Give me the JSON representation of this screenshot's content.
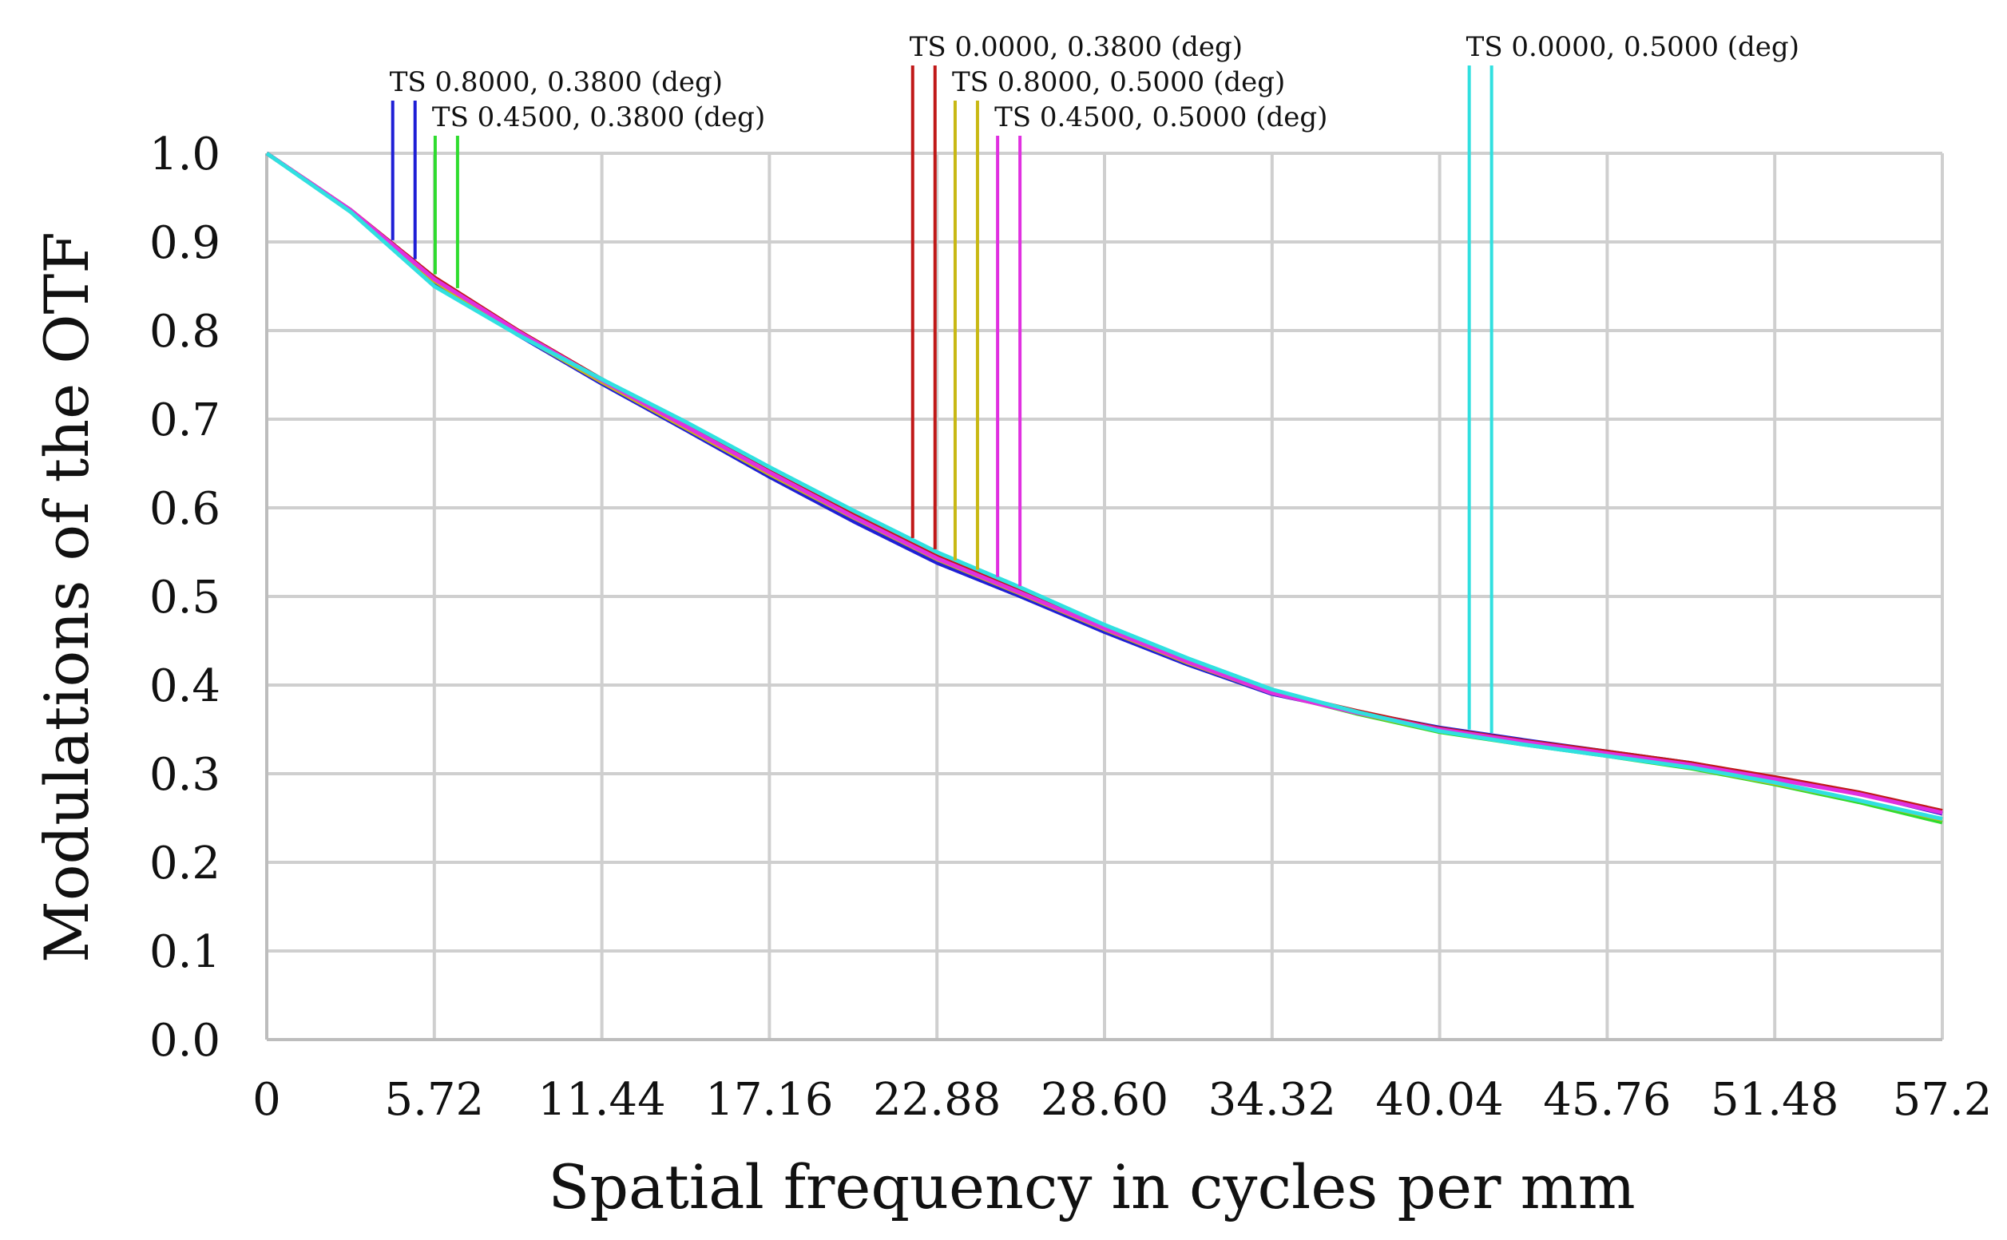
{
  "chart_data": {
    "type": "line",
    "xlabel": "Spatial frequency in cycles per mm",
    "ylabel": "Modulations of the OTF",
    "xlim": [
      0,
      57.2
    ],
    "ylim": [
      0,
      1
    ],
    "grid": true,
    "x_tick_labels": [
      "0",
      "5.72",
      "11.44",
      "17.16",
      "22.88",
      "28.60",
      "34.32",
      "40.04",
      "45.76",
      "51.48",
      "57.2"
    ],
    "y_tick_labels": [
      "0.0",
      "0.1",
      "0.2",
      "0.3",
      "0.4",
      "0.5",
      "0.6",
      "0.7",
      "0.8",
      "0.9",
      "1.0"
    ],
    "x": [
      0,
      2.86,
      5.72,
      8.58,
      11.44,
      14.3,
      17.16,
      20.02,
      22.88,
      25.74,
      28.6,
      31.46,
      34.32,
      37.18,
      40.04,
      42.9,
      45.76,
      48.62,
      51.48,
      54.34,
      57.2
    ],
    "series": [
      {
        "name": "TS 0.8000, 0.3800 (deg)",
        "color": "#1f1fd6",
        "values": [
          1.0,
          0.935,
          0.855,
          0.795,
          0.74,
          0.688,
          0.635,
          0.585,
          0.538,
          0.5,
          0.46,
          0.423,
          0.39,
          0.37,
          0.352,
          0.338,
          0.325,
          0.312,
          0.295,
          0.278,
          0.255
        ]
      },
      {
        "name": "TS 0.4500, 0.3800 (deg)",
        "color": "#2edc2e",
        "values": [
          1.0,
          0.936,
          0.857,
          0.798,
          0.744,
          0.692,
          0.64,
          0.59,
          0.544,
          0.505,
          0.465,
          0.427,
          0.392,
          0.368,
          0.347,
          0.333,
          0.32,
          0.306,
          0.288,
          0.268,
          0.245
        ]
      },
      {
        "name": "TS 0.0000, 0.3800 (deg)",
        "color": "#c01818",
        "values": [
          1.0,
          0.936,
          0.86,
          0.8,
          0.745,
          0.693,
          0.641,
          0.592,
          0.545,
          0.506,
          0.465,
          0.428,
          0.393,
          0.371,
          0.351,
          0.337,
          0.325,
          0.312,
          0.296,
          0.279,
          0.258
        ]
      },
      {
        "name": "TS 0.8000, 0.5000 (deg)",
        "color": "#c8b814",
        "values": [
          1.0,
          0.935,
          0.856,
          0.796,
          0.742,
          0.69,
          0.638,
          0.589,
          0.542,
          0.503,
          0.463,
          0.425,
          0.391,
          0.369,
          0.348,
          0.334,
          0.321,
          0.307,
          0.289,
          0.27,
          0.248
        ]
      },
      {
        "name": "TS 0.4500, 0.5000 (deg)",
        "color": "#e030e0",
        "values": [
          1.0,
          0.936,
          0.858,
          0.799,
          0.744,
          0.692,
          0.64,
          0.59,
          0.543,
          0.504,
          0.464,
          0.426,
          0.391,
          0.369,
          0.35,
          0.336,
          0.323,
          0.31,
          0.294,
          0.277,
          0.256
        ]
      },
      {
        "name": "TS 0.0000, 0.5000 (deg)",
        "color": "#30e0e0",
        "values": [
          1.0,
          0.934,
          0.85,
          0.795,
          0.745,
          0.697,
          0.646,
          0.597,
          0.55,
          0.51,
          0.468,
          0.43,
          0.395,
          0.37,
          0.348,
          0.333,
          0.32,
          0.307,
          0.29,
          0.27,
          0.249
        ]
      }
    ],
    "markers": [
      {
        "label": "TS 0.8000, 0.3800 (deg)",
        "color": "#1f1fd6",
        "x": 4.3
      },
      {
        "label": "TS 0.4500, 0.3800 (deg)",
        "color": "#2edc2e",
        "x": 5.75
      },
      {
        "label": "TS 0.0000, 0.3800 (deg)",
        "color": "#c01818",
        "x": 22.05
      },
      {
        "label": "TS 0.8000, 0.5000 (deg)",
        "color": "#c8b814",
        "x": 23.5
      },
      {
        "label": "TS 0.4500, 0.5000 (deg)",
        "color": "#e030e0",
        "x": 24.95
      },
      {
        "label": "TS 0.0000, 0.5000 (deg)",
        "color": "#30e0e0",
        "x": 41.05
      }
    ]
  }
}
